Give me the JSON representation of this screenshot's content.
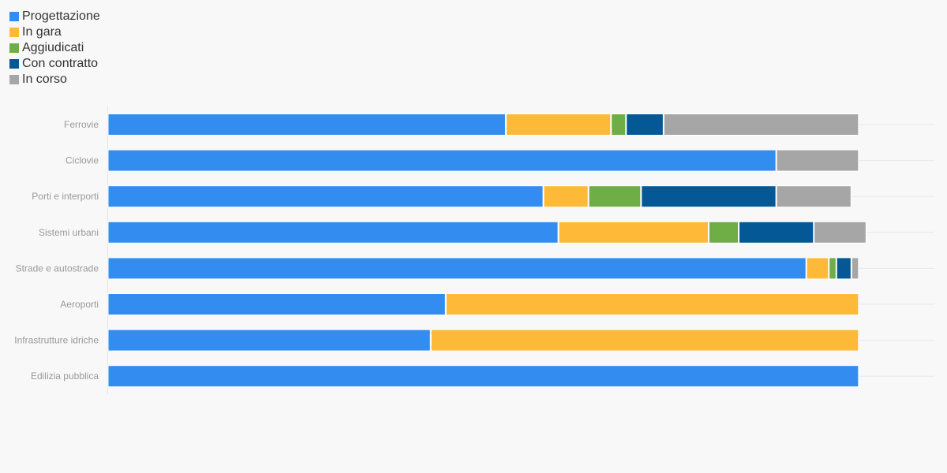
{
  "chart_data": {
    "type": "bar",
    "orientation": "horizontal",
    "stacked": true,
    "categories": [
      "Ferrovie",
      "Ciclovie",
      "Porti e interporti",
      "Sistemi urbani",
      "Strade e autostrade",
      "Aeroporti",
      "Infrastrutture idriche",
      "Edilizia pubblica"
    ],
    "series": [
      {
        "name": "Progettazione",
        "color": "#338df0",
        "values": [
          53.0,
          89.0,
          58.0,
          60.0,
          93.0,
          45.0,
          43.0,
          100.0
        ]
      },
      {
        "name": "In gara",
        "color": "#ffb938",
        "values": [
          14.0,
          0,
          6.0,
          20.0,
          3.0,
          55.0,
          57.0,
          0
        ]
      },
      {
        "name": "Aggiudicati",
        "color": "#6fad47",
        "values": [
          2.0,
          0,
          7.0,
          4.0,
          1.0,
          0,
          0,
          0
        ]
      },
      {
        "name": "Con contratto",
        "color": "#045896",
        "values": [
          5.0,
          0,
          18.0,
          10.0,
          2.0,
          0,
          0,
          0
        ]
      },
      {
        "name": "In corso",
        "color": "#a6a6a6",
        "values": [
          26.0,
          11.0,
          10.0,
          7.0,
          1.0,
          0,
          0,
          0
        ]
      }
    ],
    "xlim": [
      0,
      110
    ],
    "grid": true,
    "legend_position": "top-left"
  }
}
